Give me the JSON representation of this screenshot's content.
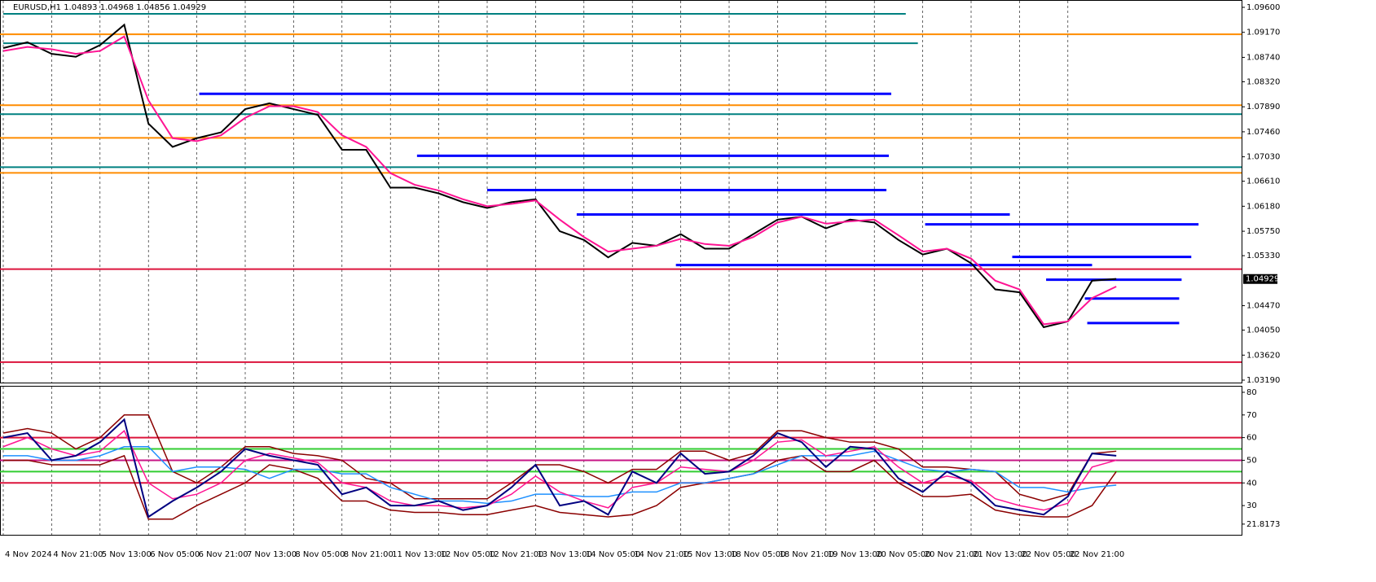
{
  "chart_data": [
    {
      "type": "line",
      "title": "EURUSD,H1  1.04893 1.04968 1.04856 1.04929",
      "categories": [
        "4 Nov 2024",
        null,
        "4 Nov 21:00",
        null,
        "5 Nov 13:00",
        null,
        "6 Nov 05:00",
        null,
        "6 Nov 21:00",
        null,
        "7 Nov 13:00",
        null,
        "8 Nov 05:00",
        null,
        "8 Nov 21:00",
        null,
        "11 Nov 13:00",
        null,
        "12 Nov 05:00",
        null,
        "12 Nov 21:00",
        null,
        "13 Nov 13:00",
        null,
        "14 Nov 05:00",
        null,
        "14 Nov 21:00",
        null,
        "15 Nov 13:00",
        null,
        "18 Nov 05:00",
        null,
        "18 Nov 21:00",
        null,
        "19 Nov 13:00",
        null,
        "20 Nov 05:00",
        null,
        "20 Nov 21:00",
        null,
        "21 Nov 13:00",
        null,
        "22 Nov 05:00",
        null,
        "22 Nov 21:00",
        null,
        null
      ],
      "series": [
        {
          "color": "#000000",
          "values": [
            1.089,
            1.09,
            1.088,
            1.0875,
            1.0895,
            1.093,
            1.076,
            1.072,
            1.0735,
            1.0745,
            1.0785,
            1.0795,
            1.0785,
            1.0775,
            1.0715,
            1.0715,
            1.065,
            1.065,
            1.064,
            1.0625,
            1.0615,
            1.0625,
            1.063,
            1.0575,
            1.056,
            1.053,
            1.0555,
            1.055,
            1.057,
            1.0545,
            1.0545,
            1.057,
            1.0595,
            1.06,
            1.058,
            1.0595,
            1.059,
            1.056,
            1.0535,
            1.0545,
            1.052,
            1.0475,
            1.047,
            1.041,
            1.042,
            1.049,
            1.0493
          ]
        },
        {
          "color": "#ff1493",
          "values": [
            1.0885,
            1.0892,
            1.0888,
            1.088,
            1.0885,
            1.091,
            1.08,
            1.0735,
            1.073,
            1.074,
            1.077,
            1.079,
            1.079,
            1.078,
            1.074,
            1.072,
            1.0675,
            1.0655,
            1.0645,
            1.063,
            1.0618,
            1.0622,
            1.0628,
            1.0595,
            1.0565,
            1.054,
            1.0545,
            1.055,
            1.0562,
            1.0553,
            1.055,
            1.0565,
            1.059,
            1.06,
            1.0588,
            1.0592,
            1.0595,
            1.0568,
            1.054,
            1.0545,
            1.0528,
            1.049,
            1.0475,
            1.0415,
            1.042,
            1.046,
            1.048
          ]
        }
      ],
      "levels": [
        {
          "value": 1.09137,
          "color": "#ff8c00"
        },
        {
          "value": 1.07917,
          "color": "#ff8c00"
        },
        {
          "value": 1.07356,
          "color": "#ff8c00"
        },
        {
          "value": 1.06753,
          "color": "#ff8c00"
        },
        {
          "value": 1.09488,
          "color": "#008080",
          "from": 0,
          "to": 37.3
        },
        {
          "value": 1.08983,
          "color": "#008080",
          "from": 0,
          "to": 37.8
        },
        {
          "value": 1.07763,
          "color": "#008080"
        },
        {
          "value": 1.06851,
          "color": "#008080"
        },
        {
          "value": 1.05098,
          "color": "#dc143c"
        },
        {
          "value": 1.03499,
          "color": "#dc143c"
        },
        {
          "value": 1.08113,
          "color": "#0000ff",
          "from": 8.1,
          "to": 36.7
        },
        {
          "value": 1.07047,
          "color": "#0000ff",
          "from": 17.1,
          "to": 36.6
        },
        {
          "value": 1.06458,
          "color": "#0000ff",
          "from": 20.0,
          "to": 36.5
        },
        {
          "value": 1.06038,
          "color": "#0000ff",
          "from": 23.7,
          "to": 41.6
        },
        {
          "value": 1.05869,
          "color": "#0000ff",
          "from": 38.1,
          "to": 49.4
        },
        {
          "value": 1.05308,
          "color": "#0000ff",
          "from": 41.7,
          "to": 49.1
        },
        {
          "value": 1.05168,
          "color": "#0000ff",
          "from": 27.8,
          "to": 45.0
        },
        {
          "value": 1.04916,
          "color": "#0000ff",
          "from": 43.1,
          "to": 48.7
        },
        {
          "value": 1.04593,
          "color": "#0000ff",
          "from": 44.7,
          "to": 48.6
        },
        {
          "value": 1.04172,
          "color": "#0000ff",
          "from": 44.8,
          "to": 48.6
        }
      ],
      "ylim": [
        1.03148,
        1.09712
      ],
      "yticks": [
        {
          "value": 1.096,
          "label": "1.09600"
        },
        {
          "value": 1.0917,
          "label": "1.09170"
        },
        {
          "value": 1.0874,
          "label": "1.08740"
        },
        {
          "value": 1.0832,
          "label": "1.08320"
        },
        {
          "value": 1.0789,
          "label": "1.07890"
        },
        {
          "value": 1.0746,
          "label": "1.07460"
        },
        {
          "value": 1.0703,
          "label": "1.07030"
        },
        {
          "value": 1.0661,
          "label": "1.06610"
        },
        {
          "value": 1.0618,
          "label": "1.06180"
        },
        {
          "value": 1.0575,
          "label": "1.05750"
        },
        {
          "value": 1.0533,
          "label": "1.05330"
        },
        {
          "value": 1.0447,
          "label": "1.04470"
        },
        {
          "value": 1.0405,
          "label": "1.04050"
        },
        {
          "value": 1.0362,
          "label": "1.03620"
        },
        {
          "value": 1.0319,
          "label": "1.03190"
        }
      ],
      "last_price": 1.04929
    },
    {
      "type": "line",
      "series": [
        {
          "color": "#8b0000",
          "values": [
            62,
            64,
            62,
            55,
            60,
            70,
            70,
            45,
            40,
            47,
            56,
            56,
            53,
            52,
            50,
            42,
            40,
            33,
            33,
            33,
            33,
            40,
            48,
            48,
            45,
            40,
            46,
            46,
            54,
            54,
            50,
            53,
            63,
            63,
            60,
            58,
            58,
            55,
            47,
            47,
            46,
            45,
            35,
            32,
            35,
            53,
            54
          ]
        },
        {
          "color": "#8b0000",
          "values": [
            50,
            50,
            48,
            48,
            48,
            52,
            24,
            24,
            30,
            35,
            40,
            48,
            46,
            42,
            32,
            32,
            28,
            27,
            27,
            26,
            26,
            28,
            30,
            27,
            26,
            25,
            26,
            30,
            38,
            40,
            42,
            44,
            50,
            52,
            45,
            45,
            50,
            40,
            34,
            34,
            35,
            28,
            26,
            25,
            25,
            30,
            45
          ]
        },
        {
          "color": "#1e90ff",
          "values": [
            52,
            52,
            50,
            50,
            52,
            56,
            56,
            45,
            47,
            47,
            46,
            42,
            46,
            46,
            44,
            44,
            38,
            35,
            32,
            32,
            31,
            32,
            35,
            35,
            34,
            34,
            36,
            36,
            40,
            40,
            42,
            44,
            48,
            52,
            52,
            52,
            54,
            50,
            46,
            45,
            46,
            45,
            38,
            38,
            36,
            38,
            39
          ]
        },
        {
          "color": "#ff1493",
          "values": [
            56,
            60,
            55,
            52,
            54,
            63,
            40,
            33,
            35,
            40,
            50,
            53,
            51,
            49,
            40,
            38,
            32,
            30,
            30,
            29,
            30,
            35,
            43,
            36,
            32,
            29,
            38,
            40,
            47,
            46,
            45,
            50,
            58,
            59,
            52,
            54,
            56,
            47,
            40,
            43,
            41,
            33,
            30,
            28,
            31,
            47,
            50
          ]
        },
        {
          "color": "#000080",
          "values": [
            60,
            62,
            50,
            52,
            58,
            68,
            25,
            32,
            38,
            45,
            55,
            52,
            50,
            48,
            35,
            38,
            30,
            30,
            32,
            28,
            30,
            38,
            48,
            30,
            32,
            26,
            45,
            40,
            53,
            44,
            45,
            52,
            62,
            58,
            47,
            56,
            55,
            42,
            36,
            45,
            40,
            30,
            28,
            26,
            34,
            53,
            52
          ]
        }
      ],
      "levels": [
        {
          "value": 60,
          "color": "#dc143c"
        },
        {
          "value": 55,
          "color": "#32cd32"
        },
        {
          "value": 50,
          "color": "#c71585"
        },
        {
          "value": 45,
          "color": "#32cd32"
        },
        {
          "value": 40,
          "color": "#dc143c"
        }
      ],
      "ylim": [
        17.1,
        82.5
      ],
      "yticks": [
        80,
        70,
        60,
        50,
        40,
        30,
        21.8173
      ]
    }
  ]
}
